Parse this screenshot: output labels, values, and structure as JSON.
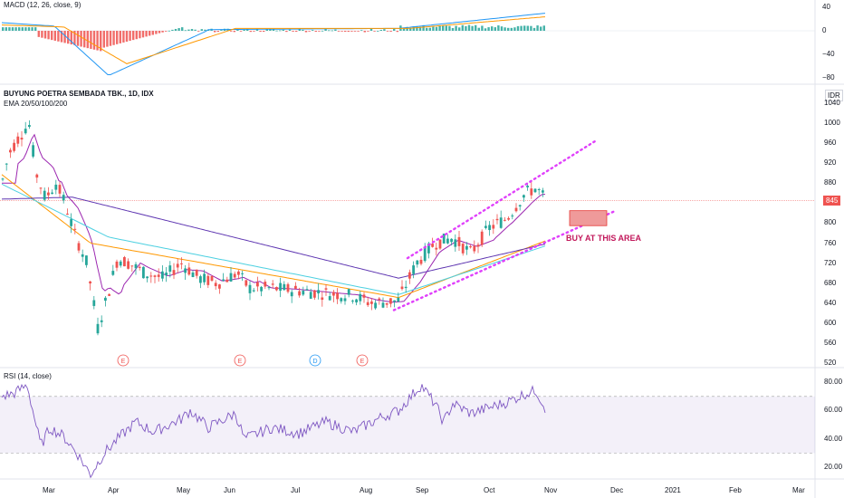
{
  "panels": {
    "macd": {
      "label": "MACD (12, 26, close, 9)",
      "ticks": [
        "40",
        "0",
        "−40",
        "−80"
      ]
    },
    "price": {
      "title": "BUYUNG POETRA SEMBADA TBK., 1D, IDX",
      "subtitle": "EMA 20/50/100/200",
      "currency": "IDR",
      "ticks": [
        "1040",
        "1000",
        "960",
        "920",
        "880",
        "840",
        "800",
        "760",
        "720",
        "680",
        "640",
        "600",
        "560",
        "520"
      ],
      "last_price": "845",
      "annotation": "BUY AT THIS AREA"
    },
    "rsi": {
      "label": "RSI (14, close)",
      "ticks": [
        "80.00",
        "60.00",
        "40.00",
        "20.00"
      ]
    }
  },
  "events": [
    "E",
    "E",
    "D",
    "E"
  ],
  "time_axis": [
    "Mar",
    "Apr",
    "May",
    "Jun",
    "Jul",
    "Aug",
    "Sep",
    "Oct",
    "Nov",
    "Dec",
    "2021",
    "Feb",
    "Mar"
  ],
  "colors": {
    "up": "#26a69a",
    "down": "#ef5350",
    "ema20": "#9c27b0",
    "ema50": "#ff9800",
    "ema100": "#4dd0e1",
    "ema200": "#5e35b1",
    "macd": "#2196f3",
    "signal": "#ff9800",
    "rsi": "#7e57c2",
    "channel": "#e040fb"
  },
  "chart_data": [
    {
      "type": "candlestick",
      "title": "BUYUNG POETRA SEMBADA TBK., 1D, IDX",
      "series": [
        {
          "name": "EMA 20/50/100/200"
        }
      ],
      "ylim": [
        520,
        1040
      ],
      "x_months": [
        "Mar",
        "Apr",
        "May",
        "Jun",
        "Jul",
        "Aug",
        "Sep",
        "Oct",
        "Nov"
      ],
      "approx_close_by_month": [
        {
          "x": "Feb",
          "close": 900
        },
        {
          "x": "Mar",
          "close": 740
        },
        {
          "x": "Apr",
          "close": 690
        },
        {
          "x": "May",
          "close": 700
        },
        {
          "x": "Jun",
          "close": 690
        },
        {
          "x": "Jul",
          "close": 665
        },
        {
          "x": "Aug",
          "close": 640
        },
        {
          "x": "Sep",
          "close": 760
        },
        {
          "x": "Oct",
          "close": 820
        },
        {
          "x": "Nov",
          "close": 845
        }
      ],
      "last_price": 845
    },
    {
      "type": "line",
      "title": "RSI (14, close)",
      "ylim": [
        15,
        80
      ],
      "levels": [
        70,
        30
      ]
    },
    {
      "type": "bar",
      "title": "MACD (12, 26, close, 9)",
      "ylim": [
        -80,
        40
      ]
    }
  ]
}
